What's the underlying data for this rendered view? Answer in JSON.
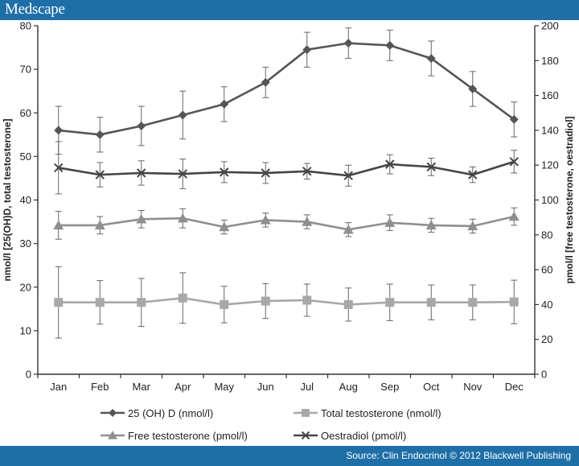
{
  "brand": "Medscape",
  "source": "Source: Clin Endocrinol © 2012 Blackwell Publishing",
  "chart_data": {
    "type": "line",
    "categories": [
      "Jan",
      "Feb",
      "Mar",
      "Apr",
      "May",
      "Jun",
      "Jul",
      "Aug",
      "Sep",
      "Oct",
      "Nov",
      "Dec"
    ],
    "ylabel": "nmol/l [25(OH)D, total testosterone]",
    "y2label": "pmol/l [free testosterone, oestradiol]",
    "ylim": [
      0,
      80
    ],
    "y2lim": [
      0,
      200
    ],
    "yticks": [
      0,
      10,
      20,
      30,
      40,
      50,
      60,
      70,
      80
    ],
    "y2ticks": [
      0,
      20,
      40,
      60,
      80,
      100,
      120,
      140,
      160,
      180,
      200
    ],
    "grid": false,
    "legend_position": "bottom",
    "series": [
      {
        "name": "25 (OH)  D (nmol/l)",
        "axis": "left",
        "marker": "diamond",
        "color": "#555555",
        "values": [
          56,
          55,
          57,
          59.5,
          62,
          67,
          74.5,
          76,
          75.5,
          72.5,
          65.5,
          58.5
        ],
        "errors": [
          5.5,
          4,
          4.5,
          5.5,
          4,
          3.5,
          4,
          3.5,
          3.5,
          4,
          4,
          4
        ]
      },
      {
        "name": "Total testosterone (nmol/l)",
        "axis": "left",
        "marker": "square",
        "color": "#a8a8a8",
        "values": [
          16.5,
          16.5,
          16.5,
          17.5,
          16,
          16.8,
          17,
          16,
          16.5,
          16.5,
          16.5,
          16.6
        ],
        "errors": [
          8.2,
          5,
          5.5,
          5.8,
          4.2,
          4,
          3.7,
          3.8,
          4.2,
          4,
          4,
          5
        ]
      },
      {
        "name": "Free testosterone (pmol/l)",
        "axis": "right",
        "marker": "triangle",
        "color": "#8f8f8f",
        "values": [
          85.5,
          85.5,
          89,
          89.5,
          84.5,
          88.5,
          87.5,
          83,
          87,
          85.5,
          85,
          90.5
        ],
        "errors": [
          8,
          5,
          5,
          5.5,
          4,
          4,
          4,
          4,
          4.5,
          4,
          4,
          5
        ]
      },
      {
        "name": "Oestradiol (pmol/l)",
        "axis": "right",
        "marker": "x",
        "color": "#454545",
        "values": [
          118.5,
          114.5,
          115.5,
          115,
          116,
          115.5,
          116.5,
          114,
          120.5,
          119,
          114.5,
          122
        ],
        "errors": [
          15,
          7,
          7,
          8.5,
          6,
          6,
          4.5,
          6,
          5.5,
          5,
          4.5,
          6.5
        ]
      }
    ]
  }
}
